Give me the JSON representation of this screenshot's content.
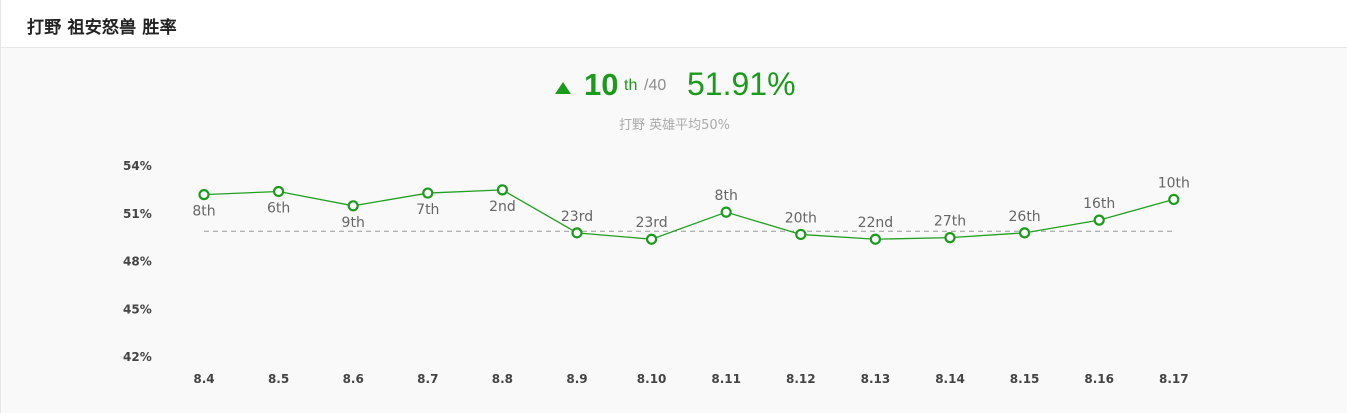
{
  "header": {
    "title": "打野 祖安怒兽 胜率"
  },
  "summary": {
    "rank": "10",
    "rank_suffix": "th",
    "rank_total": "/40",
    "winrate": "51.91%",
    "subtitle": "打野 英雄平均50%",
    "trend_icon": "up-triangle-icon"
  },
  "colors": {
    "accent": "#1b9a1b",
    "line": "#22a022",
    "reference": "#9a9a9a"
  },
  "chart_data": {
    "type": "line",
    "title": "",
    "xlabel": "",
    "ylabel": "",
    "categories": [
      "8.4",
      "8.5",
      "8.6",
      "8.7",
      "8.8",
      "8.9",
      "8.10",
      "8.11",
      "8.12",
      "8.13",
      "8.14",
      "8.15",
      "8.16",
      "8.17"
    ],
    "series": [
      {
        "name": "胜率",
        "values": [
          52.2,
          52.4,
          51.5,
          52.3,
          52.5,
          49.8,
          49.4,
          51.1,
          49.7,
          49.4,
          49.5,
          49.8,
          50.6,
          51.9
        ],
        "rank_labels": [
          "8th",
          "6th",
          "9th",
          "7th",
          "2nd",
          "23rd",
          "23rd",
          "8th",
          "20th",
          "22nd",
          "27th",
          "26th",
          "16th",
          "10th"
        ]
      }
    ],
    "reference_line": {
      "value": 49.9,
      "label": "英雄平均50%"
    },
    "y_ticks": [
      54,
      51,
      48,
      45,
      42
    ],
    "y_tick_labels": [
      "54%",
      "51%",
      "48%",
      "45%",
      "42%"
    ],
    "ylim": [
      42,
      54
    ],
    "grid": false
  }
}
